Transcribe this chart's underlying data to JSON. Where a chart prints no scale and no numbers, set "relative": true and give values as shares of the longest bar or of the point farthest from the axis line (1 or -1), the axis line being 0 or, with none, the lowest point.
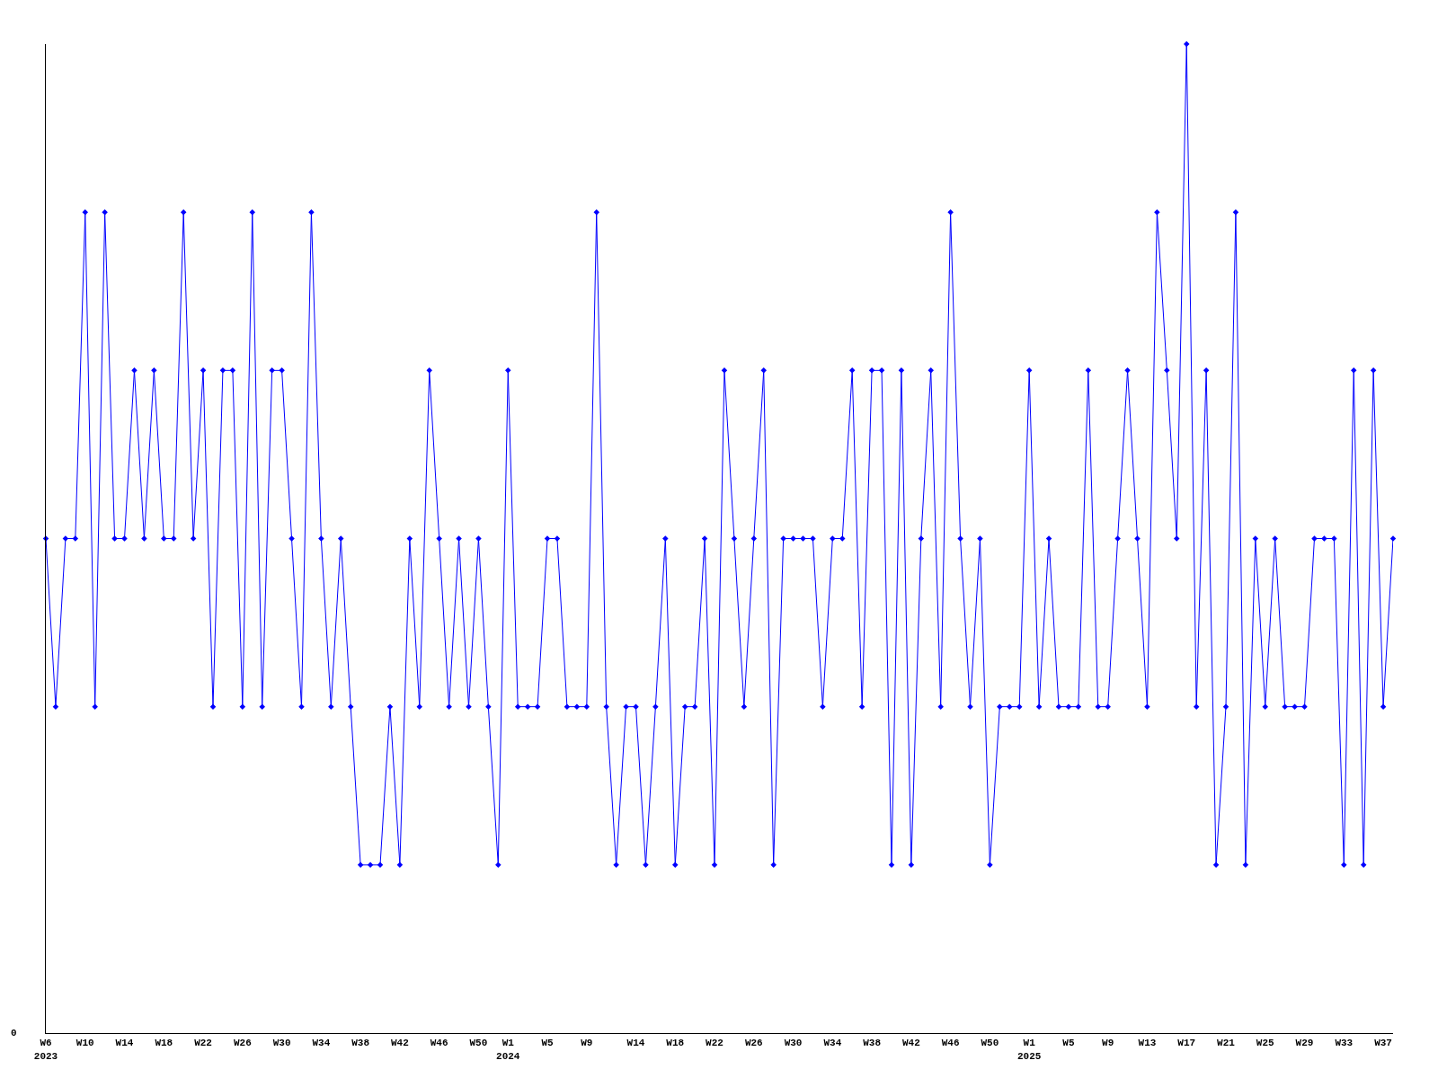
{
  "chart_data": {
    "type": "line",
    "relative": true,
    "color": "#0000ff",
    "marker": "diamond",
    "line_style": "solid",
    "grid": false,
    "annotations": [
      "0"
    ],
    "categories": [
      "W6\n2023",
      null,
      null,
      null,
      "W10",
      null,
      null,
      null,
      "W14",
      null,
      null,
      null,
      "W18",
      null,
      null,
      null,
      "W22",
      null,
      null,
      null,
      "W26",
      null,
      null,
      null,
      "W30",
      null,
      null,
      null,
      "W34",
      null,
      null,
      null,
      "W38",
      null,
      null,
      null,
      "W42",
      null,
      null,
      null,
      "W46",
      null,
      null,
      null,
      "W50",
      null,
      null,
      "W1\n2024",
      null,
      null,
      null,
      "W5",
      null,
      null,
      null,
      "W9",
      null,
      null,
      null,
      null,
      "W14",
      null,
      null,
      null,
      "W18",
      null,
      null,
      null,
      "W22",
      null,
      null,
      null,
      "W26",
      null,
      null,
      null,
      "W30",
      null,
      null,
      null,
      "W34",
      null,
      null,
      null,
      "W38",
      null,
      null,
      null,
      "W42",
      null,
      null,
      null,
      "W46",
      null,
      null,
      null,
      "W50",
      null,
      null,
      null,
      "W1\n2025",
      null,
      null,
      null,
      "W5",
      null,
      null,
      null,
      "W9",
      null,
      null,
      null,
      "W13",
      null,
      null,
      null,
      "W17",
      null,
      null,
      null,
      "W21",
      null,
      null,
      null,
      "W25",
      null,
      null,
      null,
      "W29",
      null,
      null,
      null,
      "W33",
      null,
      null,
      null,
      "W37",
      null
    ],
    "values": [
      0.5,
      0.33,
      0.5,
      0.5,
      0.83,
      0.33,
      0.83,
      0.5,
      0.5,
      0.67,
      0.5,
      0.67,
      0.5,
      0.5,
      0.83,
      0.5,
      0.67,
      0.33,
      0.67,
      0.67,
      0.33,
      0.83,
      0.33,
      0.67,
      0.67,
      0.5,
      0.33,
      0.83,
      0.5,
      0.33,
      0.5,
      0.33,
      0.17,
      0.17,
      0.17,
      0.33,
      0.17,
      0.5,
      0.33,
      0.67,
      0.5,
      0.33,
      0.5,
      0.33,
      0.5,
      0.33,
      0.17,
      0.67,
      0.33,
      0.33,
      0.33,
      0.5,
      0.5,
      0.33,
      0.33,
      0.33,
      0.83,
      0.33,
      0.17,
      0.33,
      0.33,
      0.17,
      0.33,
      0.5,
      0.17,
      0.33,
      0.33,
      0.5,
      0.17,
      0.67,
      0.5,
      0.33,
      0.5,
      0.67,
      0.17,
      0.5,
      0.5,
      0.5,
      0.5,
      0.33,
      0.5,
      0.5,
      0.67,
      0.33,
      0.67,
      0.67,
      0.17,
      0.67,
      0.17,
      0.5,
      0.67,
      0.33,
      0.83,
      0.5,
      0.33,
      0.5,
      0.17,
      0.33,
      0.33,
      0.33,
      0.67,
      0.33,
      0.5,
      0.33,
      0.33,
      0.33,
      0.67,
      0.33,
      0.33,
      0.5,
      0.67,
      0.5,
      0.33,
      0.83,
      0.67,
      0.5,
      1,
      0.33,
      0.67,
      0.17,
      0.33,
      0.83,
      0.17,
      0.5,
      0.33,
      0.5,
      0.33,
      0.33,
      0.33,
      0.5,
      0.5,
      0.5,
      0.17,
      0.67,
      0.17,
      0.67,
      0.33,
      0.5
    ]
  }
}
